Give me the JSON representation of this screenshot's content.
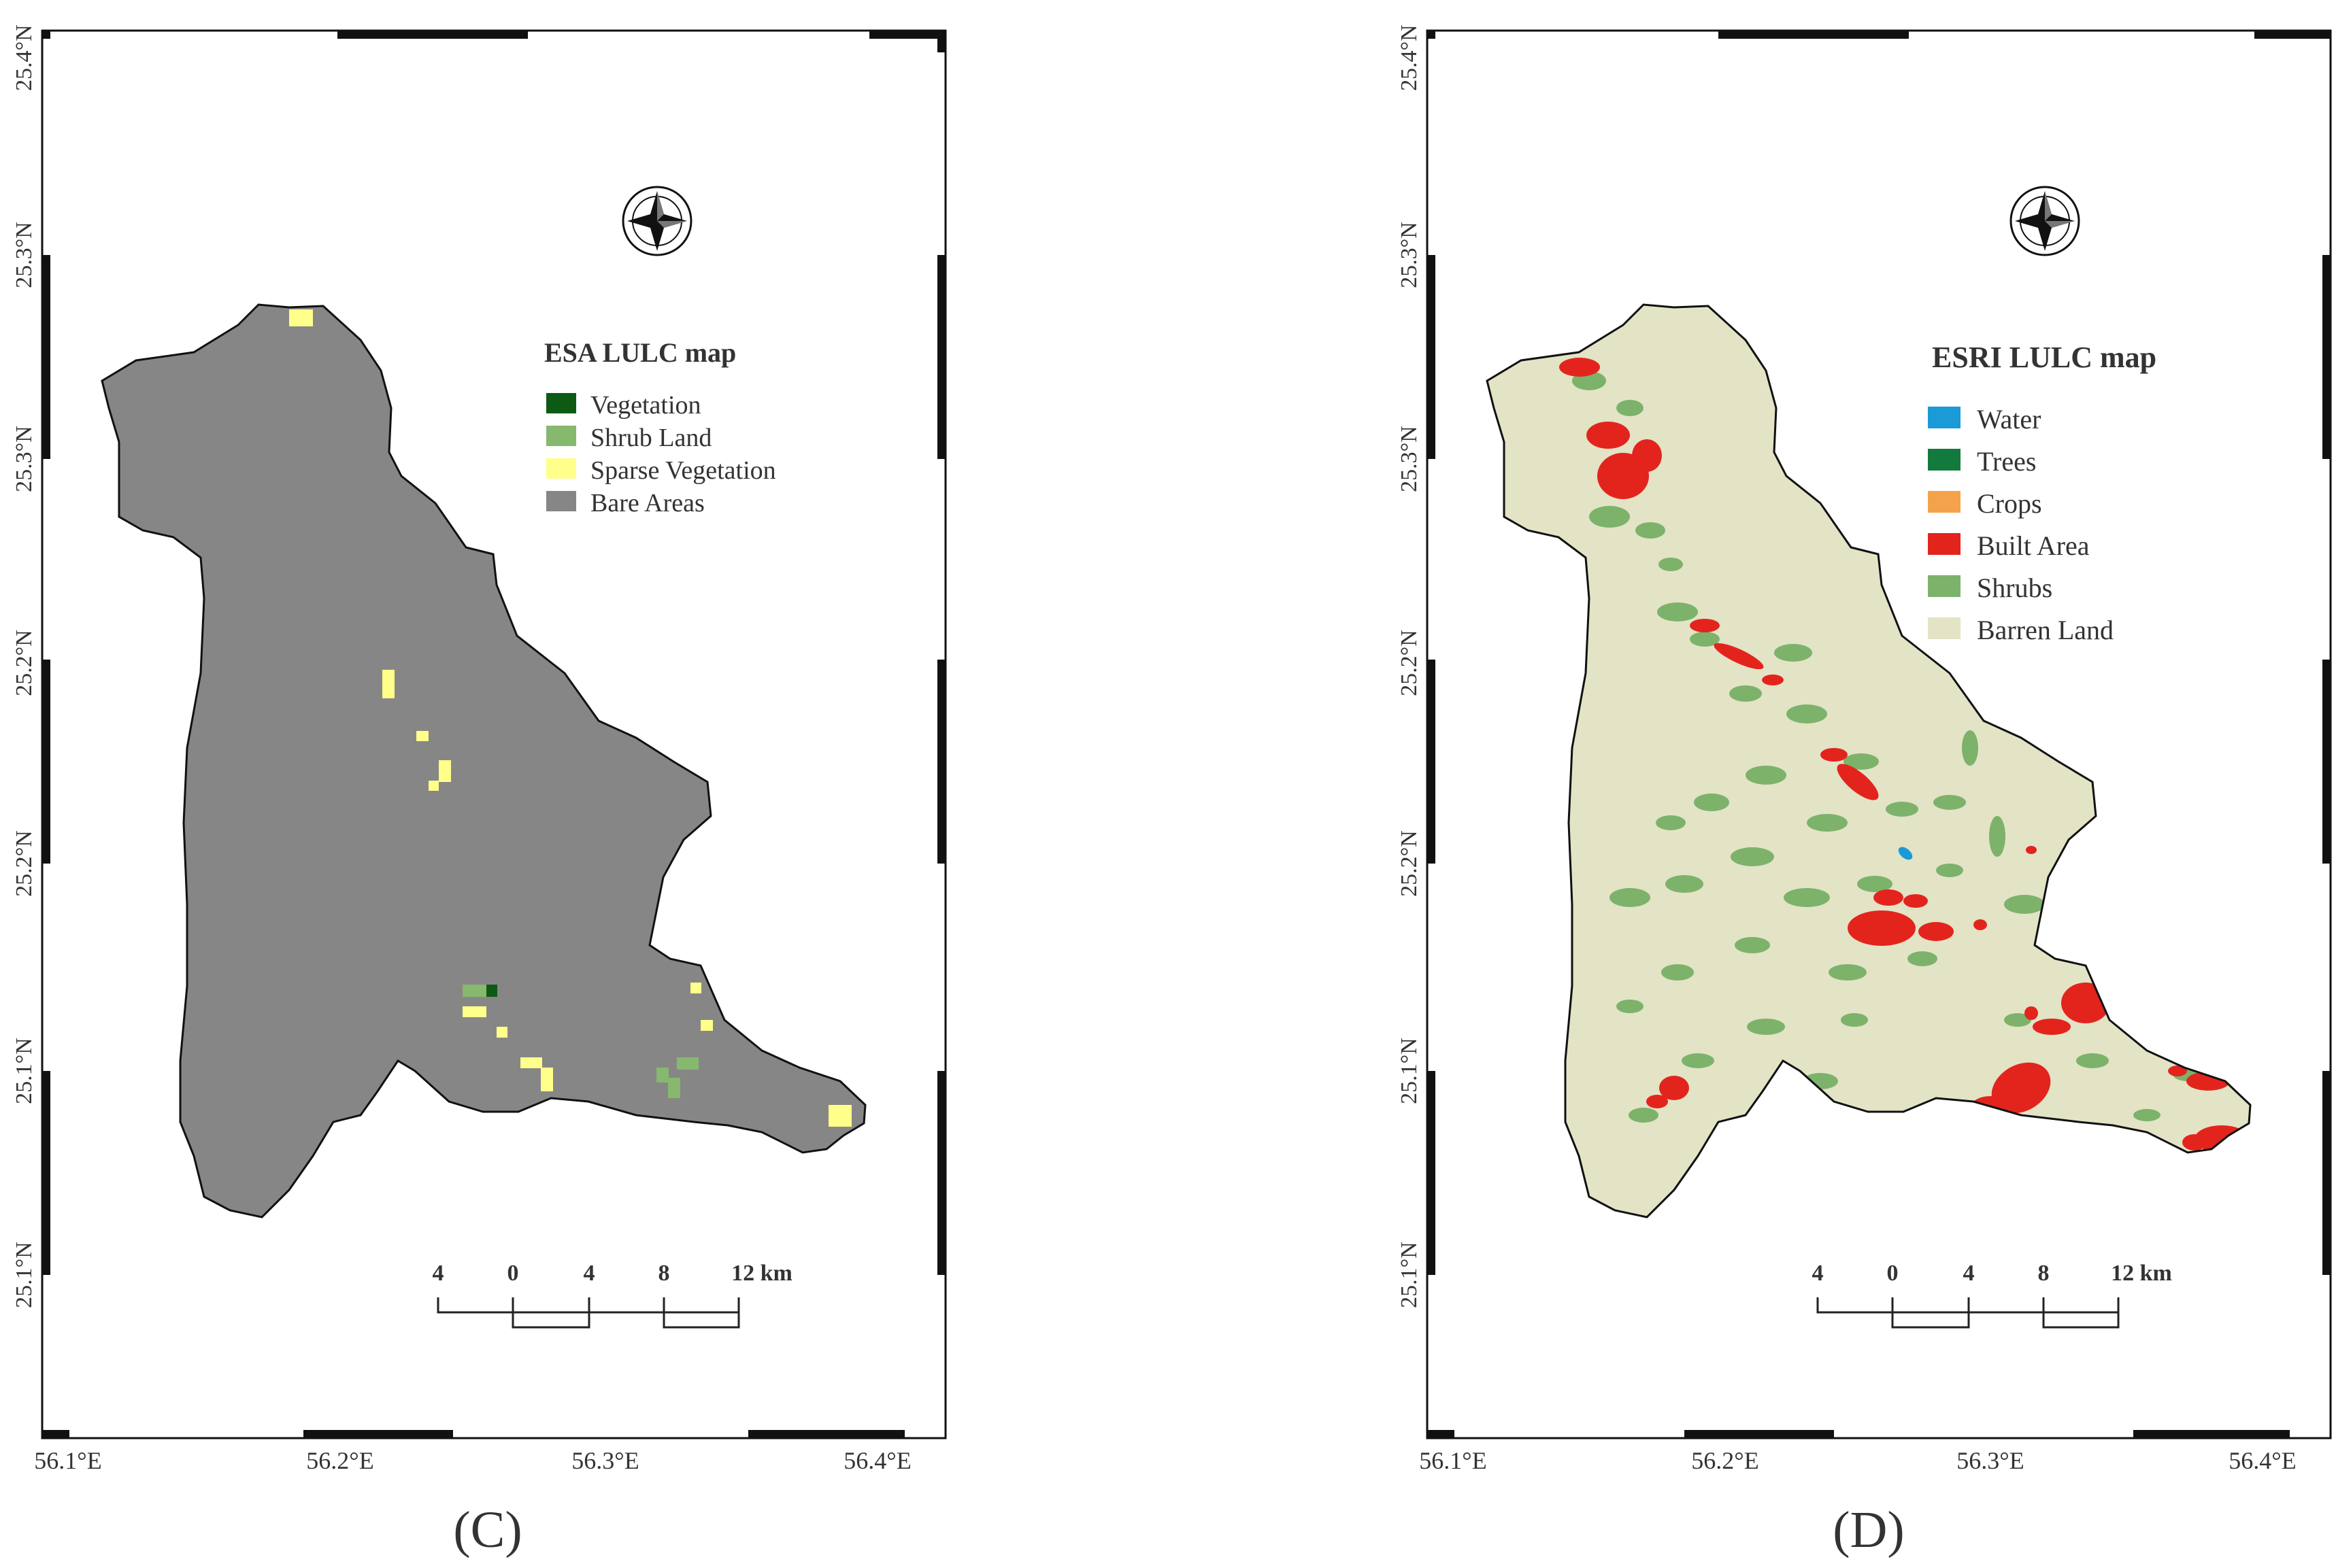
{
  "panels": [
    {
      "id": "C",
      "letter": "(C)",
      "legend_title": "ESA LULC map",
      "legend": [
        {
          "label": "Vegetation",
          "color": "#0c5a14"
        },
        {
          "label": "Shrub Land",
          "color": "#86b86e"
        },
        {
          "label": "Sparse Vegetation",
          "color": "#ffff8a"
        },
        {
          "label": "Bare Areas",
          "color": "#878687"
        }
      ],
      "lat_labels": [
        "25.4°N",
        "25.3°N",
        "25.3°N",
        "25.2°N",
        "25.2°N",
        "25.1°N",
        "25.1°N"
      ],
      "lon_labels": [
        "56.1°E",
        "56.2°E",
        "56.3°E",
        "56.4°E"
      ],
      "scale_labels": [
        "4",
        "0",
        "4",
        "8",
        "12 km"
      ],
      "base_color": "#878687",
      "north_arrow": "compass-rose-icon"
    },
    {
      "id": "D",
      "letter": "(D)",
      "legend_title": "ESRI LULC map",
      "legend": [
        {
          "label": "Water",
          "color": "#1a9ad6"
        },
        {
          "label": "Trees",
          "color": "#137a3e"
        },
        {
          "label": "Crops",
          "color": "#f5a34a"
        },
        {
          "label": "Built Area",
          "color": "#e3241d"
        },
        {
          "label": "Shrubs",
          "color": "#7db26b"
        },
        {
          "label": "Barren Land",
          "color": "#e3e3c6"
        }
      ],
      "lat_labels": [
        "25.4°N",
        "25.3°N",
        "25.3°N",
        "25.2°N",
        "25.2°N",
        "25.1°N",
        "25.1°N"
      ],
      "lon_labels": [
        "56.1°E",
        "56.2°E",
        "56.3°E",
        "56.4°E"
      ],
      "scale_labels": [
        "4",
        "0",
        "4",
        "8",
        "12 km"
      ],
      "base_color": "#e3e3c6",
      "north_arrow": "compass-rose-icon"
    }
  ]
}
